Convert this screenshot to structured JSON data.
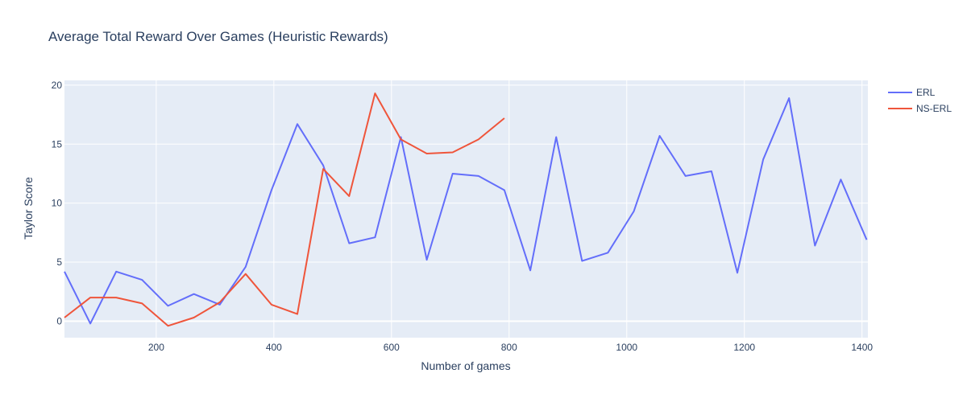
{
  "chart_data": {
    "type": "line",
    "title": "Average Total Reward Over Games (Heuristic Rewards)",
    "xlabel": "Number of games",
    "ylabel": "Taylor Score",
    "xlim": [
      44,
      1410
    ],
    "ylim": [
      -1.4,
      20.4
    ],
    "xticks": [
      200,
      400,
      600,
      800,
      1000,
      1200,
      1400
    ],
    "yticks": [
      0,
      5,
      10,
      15,
      20
    ],
    "grid": true,
    "legend_position": "top-right",
    "series": [
      {
        "name": "ERL",
        "color": "#636efa",
        "x": [
          44,
          88,
          132,
          176,
          220,
          264,
          308,
          352,
          396,
          440,
          484,
          528,
          572,
          616,
          660,
          704,
          748,
          792,
          836,
          880,
          924,
          968,
          1012,
          1056,
          1100,
          1144,
          1188,
          1232,
          1276,
          1320,
          1364,
          1408
        ],
        "y": [
          4.2,
          -0.2,
          4.2,
          3.5,
          1.3,
          2.3,
          1.4,
          4.6,
          11.1,
          16.7,
          13.2,
          6.6,
          7.1,
          15.6,
          5.2,
          12.5,
          12.3,
          11.1,
          4.3,
          15.6,
          5.1,
          5.8,
          9.3,
          15.7,
          12.3,
          12.7,
          4.1,
          13.7,
          18.9,
          6.4,
          12.0,
          6.9
        ]
      },
      {
        "name": "NS-ERL",
        "color": "#ef553b",
        "x": [
          44,
          88,
          132,
          176,
          220,
          264,
          308,
          352,
          396,
          440,
          484,
          528,
          572,
          616,
          660,
          704,
          748,
          792
        ],
        "y": [
          0.3,
          2.0,
          2.0,
          1.5,
          -0.4,
          0.3,
          1.6,
          4.0,
          1.4,
          0.6,
          12.9,
          10.6,
          19.3,
          15.4,
          14.2,
          14.3,
          15.4,
          17.2
        ]
      }
    ]
  }
}
